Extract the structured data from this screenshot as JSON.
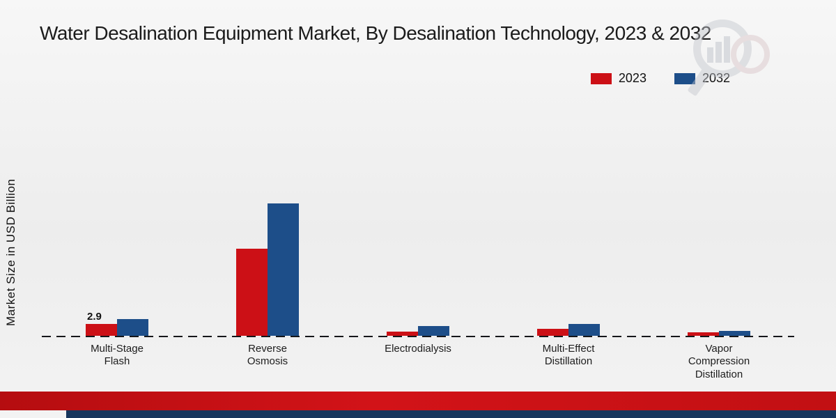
{
  "title": "Water Desalination Equipment Market, By Desalination Technology, 2023 & 2032",
  "ylabel": "Market Size in USD Billion",
  "legend": [
    {
      "label": "2023",
      "color": "#cc1016"
    },
    {
      "label": "2032",
      "color": "#1d4e89"
    }
  ],
  "colors": {
    "bar_red": "#cc1016",
    "bar_blue": "#1d4e89",
    "footer_red": "#c21013",
    "footer_navy": "#17365d",
    "baseline": "#15161a"
  },
  "chart_data": {
    "type": "bar",
    "title": "Water Desalination Equipment Market, By Desalination Technology, 2023 & 2032",
    "xlabel": "",
    "ylabel": "Market Size in USD Billion",
    "legend_position": "top-right",
    "grid": false,
    "baseline_style": "dashed",
    "categories": [
      "Multi-Stage Flash",
      "Reverse Osmosis",
      "Electrodialysis",
      "Multi-Effect Distillation",
      "Vapor Compression Distillation"
    ],
    "category_lines": [
      [
        "Multi-Stage",
        "Flash"
      ],
      [
        "Reverse",
        "Osmosis"
      ],
      [
        "Electrodialysis"
      ],
      [
        "Multi-Effect",
        "Distillation"
      ],
      [
        "Vapor",
        "Compression",
        "Distillation"
      ]
    ],
    "series": [
      {
        "name": "2023",
        "color": "#cc1016",
        "values": [
          2.9,
          21.2,
          1.1,
          1.7,
          0.8
        ]
      },
      {
        "name": "2032",
        "color": "#1d4e89",
        "values": [
          4.1,
          32.3,
          2.4,
          2.9,
          1.2
        ]
      }
    ],
    "ylim": [
      0,
      35
    ],
    "data_labels": [
      {
        "series": "2023",
        "category_index": 0,
        "text": "2.9"
      }
    ]
  },
  "watermark": {
    "name": "magnifier-chart-logo"
  }
}
